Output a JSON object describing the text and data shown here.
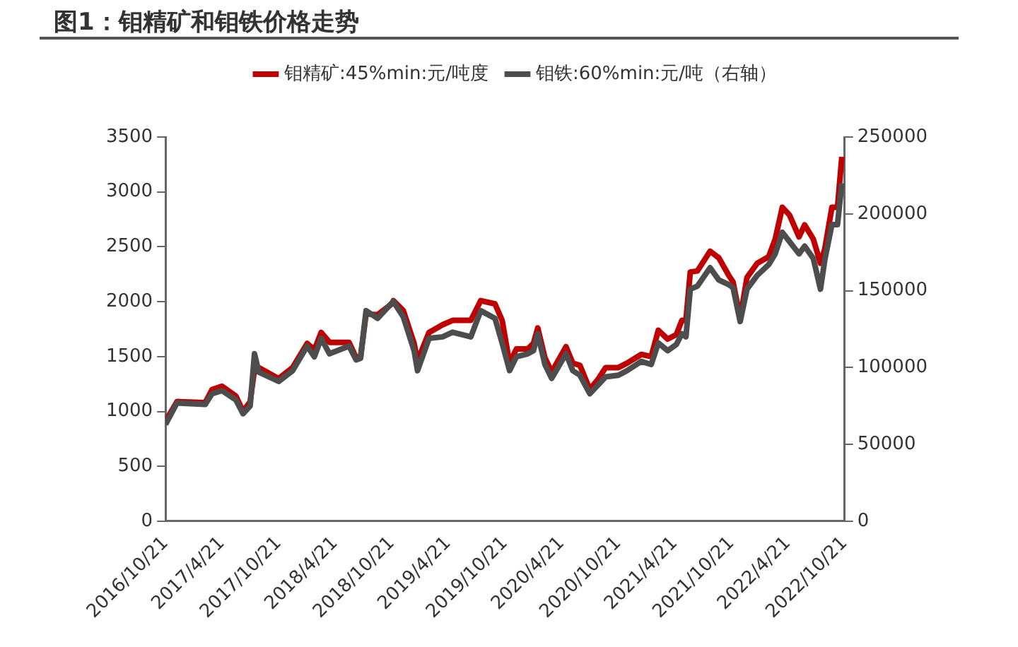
{
  "chart_data": {
    "type": "line",
    "title": "图1：钼精矿和钼铁价格走势",
    "x": [
      "2016-10-21",
      "2016-11-27",
      "2017-02-26",
      "2017-03-20",
      "2017-04-21",
      "2017-06-05",
      "2017-06-28",
      "2017-07-21",
      "2017-08-04",
      "2017-08-18",
      "2017-10-21",
      "2017-12-05",
      "2018-01-21",
      "2018-02-13",
      "2018-03-07",
      "2018-04-03",
      "2018-06-05",
      "2018-06-28",
      "2018-07-12",
      "2018-07-30",
      "2018-09-05",
      "2018-10-21",
      "2018-10-26",
      "2018-11-27",
      "2019-01-01",
      "2019-01-12",
      "2019-02-18",
      "2019-04-03",
      "2019-05-05",
      "2019-07-03",
      "2019-08-04",
      "2019-09-19",
      "2019-10-12",
      "2019-11-05",
      "2019-11-27",
      "2020-01-03",
      "2020-01-21",
      "2020-02-04",
      "2020-02-27",
      "2020-03-20",
      "2020-05-05",
      "2020-05-27",
      "2020-06-19",
      "2020-07-21",
      "2020-08-18",
      "2020-09-10",
      "2020-10-21",
      "2020-11-18",
      "2021-01-03",
      "2021-02-04",
      "2021-02-27",
      "2021-03-29",
      "2021-04-26",
      "2021-05-14",
      "2021-05-27",
      "2021-06-10",
      "2021-07-03",
      "2021-08-13",
      "2021-09-10",
      "2021-10-12",
      "2021-10-26",
      "2021-11-18",
      "2021-12-10",
      "2022-01-12",
      "2022-02-18",
      "2022-03-11",
      "2022-04-03",
      "2022-04-26",
      "2022-05-27",
      "2022-06-14",
      "2022-07-12",
      "2022-08-04",
      "2022-08-18",
      "2022-09-10",
      "2022-09-28",
      "2022-10-12"
    ],
    "series": [
      {
        "name": "钼精矿:45%min:元/吨度",
        "color": "#c00000",
        "values": [
          910,
          1090,
          1080,
          1200,
          1230,
          1140,
          1000,
          1090,
          1380,
          1400,
          1300,
          1400,
          1620,
          1560,
          1720,
          1630,
          1630,
          1490,
          1490,
          1890,
          1880,
          1980,
          2010,
          1920,
          1620,
          1460,
          1720,
          1790,
          1830,
          1830,
          2010,
          1980,
          1830,
          1440,
          1570,
          1570,
          1620,
          1760,
          1490,
          1360,
          1590,
          1440,
          1420,
          1200,
          1300,
          1400,
          1400,
          1440,
          1520,
          1500,
          1740,
          1660,
          1700,
          1830,
          1830,
          2270,
          2280,
          2460,
          2400,
          2240,
          2180,
          1850,
          2220,
          2350,
          2410,
          2570,
          2860,
          2790,
          2590,
          2700,
          2570,
          2350,
          2480,
          2860,
          2860,
          3320
        ]
      },
      {
        "name": "钼铁:60%min:元/吨（右轴）",
        "color": "#4d4d4d",
        "axis": "y2",
        "values": [
          63000,
          77000,
          76000,
          83000,
          85000,
          79000,
          70000,
          75000,
          109000,
          97000,
          91000,
          98000,
          114000,
          107000,
          119000,
          109000,
          114000,
          105000,
          106000,
          137000,
          132000,
          142000,
          143000,
          133000,
          111000,
          98000,
          119000,
          120000,
          123000,
          120000,
          137000,
          132000,
          116000,
          98000,
          107000,
          109000,
          111000,
          122000,
          102000,
          93000,
          109000,
          98000,
          95000,
          83000,
          89000,
          94000,
          95000,
          98000,
          104000,
          102000,
          116000,
          111000,
          115000,
          122000,
          120000,
          151000,
          153000,
          165000,
          157000,
          154000,
          152000,
          130000,
          151000,
          160000,
          167000,
          174000,
          188000,
          182000,
          174000,
          179000,
          171000,
          151000,
          170000,
          193000,
          193000,
          220000
        ]
      }
    ],
    "xlim": [
      "2016-10-21",
      "2022-10-21"
    ],
    "xticks": [
      {
        "value": "2016-10-21",
        "label": "2016/10/21"
      },
      {
        "value": "2017-04-21",
        "label": "2017/4/21"
      },
      {
        "value": "2017-10-21",
        "label": "2017/10/21"
      },
      {
        "value": "2018-04-21",
        "label": "2018/4/21"
      },
      {
        "value": "2018-10-21",
        "label": "2018/10/21"
      },
      {
        "value": "2019-04-21",
        "label": "2019/4/21"
      },
      {
        "value": "2019-10-21",
        "label": "2019/10/21"
      },
      {
        "value": "2020-04-21",
        "label": "2020/4/21"
      },
      {
        "value": "2020-10-21",
        "label": "2020/10/21"
      },
      {
        "value": "2021-04-21",
        "label": "2021/4/21"
      },
      {
        "value": "2021-10-21",
        "label": "2021/10/21"
      },
      {
        "value": "2022-04-21",
        "label": "2022/4/21"
      },
      {
        "value": "2022-10-21",
        "label": "2022/10/21"
      }
    ],
    "ylim": [
      0,
      3500
    ],
    "yticks": [
      0,
      500,
      1000,
      1500,
      2000,
      2500,
      3000,
      3500
    ],
    "y2lim": [
      0,
      250000
    ],
    "y2ticks": [
      0,
      50000,
      100000,
      150000,
      200000,
      250000
    ],
    "grid": false,
    "legend": "top",
    "marker": "none",
    "line_style": "solid"
  }
}
